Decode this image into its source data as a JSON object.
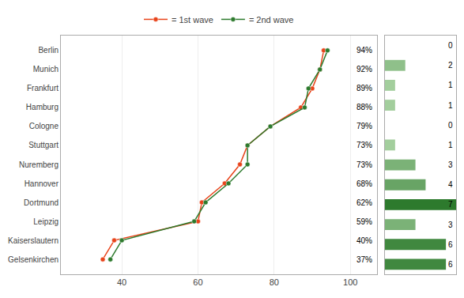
{
  "chart_data": [
    {
      "type": "line",
      "orientation": "horizontal",
      "categories": [
        "Berlin",
        "Munich",
        "Frankfurt",
        "Hamburg",
        "Cologne",
        "Stuttgart",
        "Nuremberg",
        "Hannover",
        "Dortmund",
        "Leipzig",
        "Kaiserslautern",
        "Gelsenkirchen"
      ],
      "series": [
        {
          "name": "= 1st wave",
          "color": "#e8431a",
          "marker": "circle",
          "line_style": "solid",
          "values": [
            93,
            92,
            90,
            87,
            79,
            73,
            71,
            67,
            61,
            60,
            38,
            35
          ]
        },
        {
          "name": "= 2nd wave",
          "color": "#2d7a2d",
          "marker": "circle",
          "line_style": "solid",
          "values": [
            94,
            92,
            89,
            88,
            79,
            73,
            73,
            68,
            62,
            59,
            40,
            37
          ],
          "value_labels": [
            "94%",
            "92%",
            "89%",
            "88%",
            "79%",
            "73%",
            "73%",
            "68%",
            "62%",
            "59%",
            "40%",
            "37%"
          ]
        }
      ],
      "data_labels": true,
      "xlim": [
        24,
        107
      ],
      "xticks": [
        40,
        60,
        80,
        100
      ],
      "grid": true,
      "legend": "top"
    },
    {
      "type": "bar",
      "orientation": "horizontal",
      "categories": [
        "Berlin",
        "Munich",
        "Frankfurt",
        "Hamburg",
        "Cologne",
        "Stuttgart",
        "Nuremberg",
        "Hannover",
        "Dortmund",
        "Leipzig",
        "Kaiserslautern",
        "Gelsenkirchen"
      ],
      "values": [
        0,
        2,
        1,
        1,
        0,
        1,
        3,
        4,
        7,
        3,
        6,
        6
      ],
      "colors": [
        "#b7ddb0",
        "#8fc08a",
        "#a3ce9d",
        "#a3ce9d",
        "#b7ddb0",
        "#a3ce9d",
        "#7bb277",
        "#68a465",
        "#2d7a2d",
        "#7bb277",
        "#40883f",
        "#40883f"
      ],
      "xlim": [
        0,
        7
      ],
      "data_labels": true,
      "tick_labels": false
    }
  ]
}
